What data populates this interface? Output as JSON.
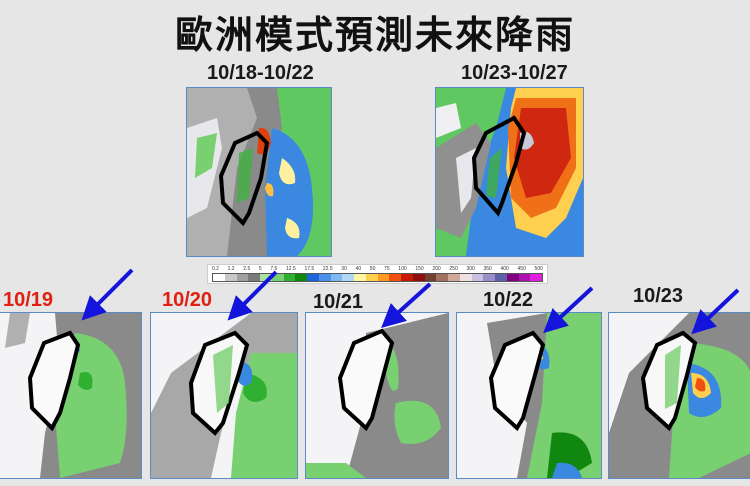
{
  "title": "歐洲模式預測未來降雨",
  "top_panels": [
    {
      "label": "10/18-10/22"
    },
    {
      "label": "10/23-10/27"
    }
  ],
  "daily_panels": [
    {
      "label": "10/19",
      "label_color": "#e02010"
    },
    {
      "label": "10/20",
      "label_color": "#e02010"
    },
    {
      "label": "10/21",
      "label_color": "#1a1a1a"
    },
    {
      "label": "10/22",
      "label_color": "#1a1a1a"
    },
    {
      "label": "10/23",
      "label_color": "#1a1a1a"
    }
  ],
  "colorbar": {
    "ticks": [
      "0.2",
      "1.2",
      "2.5",
      "5",
      "7.5",
      "12.5",
      "17.5",
      "22.5",
      "30",
      "40",
      "50",
      "75",
      "100",
      "150",
      "200",
      "250",
      "300",
      "350",
      "400",
      "450",
      "500"
    ],
    "colors": [
      "#ffffff",
      "#c8c8c8",
      "#a0a0a0",
      "#7a7a7a",
      "#a8e6a0",
      "#78d070",
      "#30b030",
      "#108810",
      "#1e64dc",
      "#4a90e8",
      "#80b8f0",
      "#b0d8f8",
      "#fff6a0",
      "#ffd050",
      "#ff9a20",
      "#f05010",
      "#c81808",
      "#901010",
      "#704030",
      "#a07060",
      "#d0a898",
      "#f0e0e0",
      "#c8c0e0",
      "#9890c8",
      "#6060a8",
      "#800080",
      "#b010b0",
      "#e020e0"
    ]
  },
  "arrow_color": "#1414dc"
}
